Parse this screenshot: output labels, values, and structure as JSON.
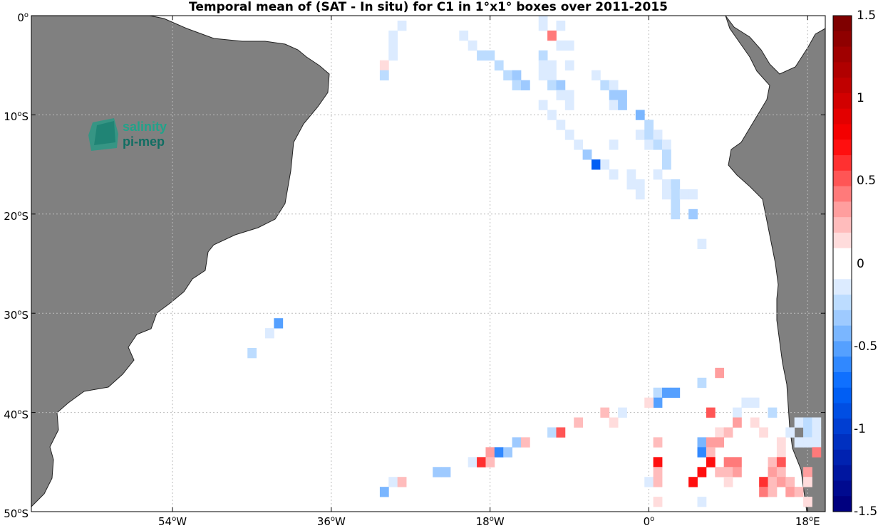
{
  "title": "Temporal mean of (SAT - In situ) for C1 in 1°x1° boxes over 2011-2015",
  "map": {
    "lon_range": [
      -70,
      20
    ],
    "lat_range": [
      -50,
      0
    ],
    "lat_labels": [
      {
        "deg": "0",
        "suffix": ""
      },
      {
        "deg": "10",
        "suffix": "S"
      },
      {
        "deg": "20",
        "suffix": "S"
      },
      {
        "deg": "30",
        "suffix": "S"
      },
      {
        "deg": "40",
        "suffix": "S"
      },
      {
        "deg": "50",
        "suffix": "S"
      }
    ],
    "lon_labels": [
      {
        "deg": "54",
        "suffix": "W"
      },
      {
        "deg": "36",
        "suffix": "W"
      },
      {
        "deg": "18",
        "suffix": "W"
      },
      {
        "deg": "0",
        "suffix": ""
      },
      {
        "deg": "18",
        "suffix": "E"
      }
    ],
    "land_color": "#808080",
    "grid": true
  },
  "logo": {
    "line1": "salinity",
    "line2": "pi-mep"
  },
  "colorbar": {
    "range": [
      -1.5,
      1.5
    ],
    "tick_labels": [
      "1.5",
      "1",
      "0.5",
      "0",
      "-0.5",
      "-1",
      "-1.5"
    ],
    "colors": [
      "#7f0000",
      "#8f0000",
      "#a00000",
      "#b00000",
      "#c00000",
      "#d20000",
      "#e30000",
      "#f40000",
      "#ff0f0f",
      "#ff3030",
      "#ff5555",
      "#ff7a7a",
      "#ff9e9e",
      "#ffbcbc",
      "#ffdcdc",
      "#ffffff",
      "#ffffff",
      "#dcebff",
      "#bcdcff",
      "#9ecaff",
      "#7ab6ff",
      "#55a0ff",
      "#3088ff",
      "#0f70ff",
      "#005ef4",
      "#004ee3",
      "#003ed2",
      "#0030c0",
      "#0022b0",
      "#0016a0",
      "#000a8f",
      "#00007f"
    ]
  },
  "chart_data": {
    "type": "heatmap",
    "cell_size_deg": 1,
    "cells": [
      [
        -28,
        -1,
        -0.1
      ],
      [
        -29,
        -2,
        -0.1
      ],
      [
        -29,
        -3,
        -0.1
      ],
      [
        -29,
        -4,
        -0.1
      ],
      [
        -30,
        -5,
        0.1
      ],
      [
        -30,
        -6,
        -0.2
      ],
      [
        -21,
        -2,
        -0.1
      ],
      [
        -20,
        -3,
        -0.1
      ],
      [
        -19,
        -4,
        -0.2
      ],
      [
        -18,
        -4,
        -0.2
      ],
      [
        -17,
        -5,
        -0.2
      ],
      [
        -16,
        -6,
        -0.2
      ],
      [
        -15,
        -6,
        -0.3
      ],
      [
        -15,
        -7,
        -0.2
      ],
      [
        -14,
        -7,
        -0.3
      ],
      [
        -12,
        0,
        -0.1
      ],
      [
        -12,
        -1,
        -0.1
      ],
      [
        -10,
        -1,
        -0.1
      ],
      [
        -11,
        -2,
        0.4
      ],
      [
        -10,
        -3,
        -0.1
      ],
      [
        -9,
        -3,
        -0.1
      ],
      [
        -12,
        -4,
        -0.2
      ],
      [
        -12,
        -5,
        -0.1
      ],
      [
        -11,
        -5,
        -0.1
      ],
      [
        -9,
        -5,
        -0.1
      ],
      [
        -12,
        -6,
        -0.1
      ],
      [
        -11,
        -6,
        -0.1
      ],
      [
        -11,
        -7,
        -0.2
      ],
      [
        -10,
        -7,
        -0.3
      ],
      [
        -10,
        -8,
        -0.1
      ],
      [
        -9,
        -8,
        -0.1
      ],
      [
        -9,
        -9,
        -0.1
      ],
      [
        -6,
        -6,
        -0.1
      ],
      [
        -5,
        -7,
        -0.2
      ],
      [
        -4,
        -7,
        -0.1
      ],
      [
        -4,
        -8,
        -0.3
      ],
      [
        -3,
        -8,
        -0.3
      ],
      [
        -4,
        -9,
        -0.1
      ],
      [
        -3,
        -9,
        -0.3
      ],
      [
        -12,
        -9,
        -0.1
      ],
      [
        -11,
        -10,
        -0.1
      ],
      [
        -10,
        -11,
        -0.1
      ],
      [
        -9,
        -12,
        -0.1
      ],
      [
        -8,
        -13,
        -0.1
      ],
      [
        -7,
        -14,
        -0.3
      ],
      [
        -6,
        -15,
        -0.8
      ],
      [
        -5,
        -15,
        -0.1
      ],
      [
        -4,
        -16,
        -0.1
      ],
      [
        -2,
        -16,
        -0.1
      ],
      [
        -2,
        -17,
        -0.1
      ],
      [
        -1,
        -17,
        -0.1
      ],
      [
        -1,
        -18,
        -0.1
      ],
      [
        -4,
        -13,
        -0.1
      ],
      [
        -1,
        -10,
        -0.4
      ],
      [
        0,
        -11,
        -0.2
      ],
      [
        -1,
        -12,
        -0.1
      ],
      [
        0,
        -12,
        -0.2
      ],
      [
        1,
        -12,
        -0.1
      ],
      [
        0,
        -13,
        -0.1
      ],
      [
        1,
        -13,
        -0.2
      ],
      [
        2,
        -13,
        -0.1
      ],
      [
        2,
        -14,
        -0.2
      ],
      [
        2,
        -15,
        -0.2
      ],
      [
        1,
        -16,
        -0.1
      ],
      [
        2,
        -17,
        -0.1
      ],
      [
        3,
        -17,
        -0.2
      ],
      [
        3,
        -18,
        -0.2
      ],
      [
        3,
        -19,
        -0.2
      ],
      [
        4,
        -18,
        -0.1
      ],
      [
        5,
        -18,
        -0.1
      ],
      [
        2,
        -18,
        -0.1
      ],
      [
        3,
        -20,
        -0.2
      ],
      [
        5,
        -20,
        -0.3
      ],
      [
        6,
        -23,
        -0.1
      ],
      [
        -42,
        -31,
        -0.5
      ],
      [
        -43,
        -32,
        -0.1
      ],
      [
        -45,
        -34,
        -0.2
      ],
      [
        8,
        -36,
        0.3
      ],
      [
        6,
        -37,
        -0.2
      ],
      [
        1,
        -38,
        -0.2
      ],
      [
        2,
        -38,
        -0.5
      ],
      [
        3,
        -38,
        -0.5
      ],
      [
        1,
        -39,
        -0.5
      ],
      [
        0,
        -39,
        0.1
      ],
      [
        11,
        -39,
        -0.1
      ],
      [
        12,
        -39,
        -0.1
      ],
      [
        -5,
        -40,
        0.2
      ],
      [
        -3,
        -40,
        -0.1
      ],
      [
        7,
        -40,
        0.5
      ],
      [
        10,
        -40,
        -0.1
      ],
      [
        14,
        -40,
        -0.2
      ],
      [
        -8,
        -41,
        0.2
      ],
      [
        -4,
        -41,
        0.1
      ],
      [
        10,
        -41,
        0.3
      ],
      [
        12,
        -41,
        0.1
      ],
      [
        17,
        -41,
        -0.1
      ],
      [
        18,
        -41,
        -0.2
      ],
      [
        19,
        -41,
        -0.1
      ],
      [
        -11,
        -42,
        -0.2
      ],
      [
        -10,
        -42,
        0.5
      ],
      [
        8,
        -42,
        0.1
      ],
      [
        9,
        -42,
        0.2
      ],
      [
        13,
        -42,
        0.1
      ],
      [
        16,
        -42,
        -0.1
      ],
      [
        18,
        -42,
        -0.2
      ],
      [
        19,
        -42,
        -0.1
      ],
      [
        -15,
        -43,
        -0.3
      ],
      [
        -14,
        -43,
        0.2
      ],
      [
        1,
        -43,
        0.2
      ],
      [
        6,
        -43,
        -0.4
      ],
      [
        7,
        -43,
        0.3
      ],
      [
        8,
        -43,
        0.3
      ],
      [
        15,
        -43,
        0.1
      ],
      [
        17,
        -43,
        -0.1
      ],
      [
        18,
        -43,
        -0.1
      ],
      [
        19,
        -43,
        -0.1
      ],
      [
        -18,
        -44,
        0.3
      ],
      [
        -17,
        -44,
        -0.6
      ],
      [
        -16,
        -44,
        -0.3
      ],
      [
        6,
        -44,
        -0.6
      ],
      [
        7,
        -44,
        0.2
      ],
      [
        15,
        -44,
        0.1
      ],
      [
        19,
        -44,
        0.4
      ],
      [
        -20,
        -45,
        -0.1
      ],
      [
        -19,
        -45,
        0.6
      ],
      [
        -18,
        -45,
        0.2
      ],
      [
        1,
        -45,
        0.7
      ],
      [
        7,
        -45,
        0.7
      ],
      [
        9,
        -45,
        0.4
      ],
      [
        10,
        -45,
        0.4
      ],
      [
        14,
        -45,
        0.2
      ],
      [
        15,
        -45,
        0.5
      ],
      [
        -24,
        -46,
        -0.3
      ],
      [
        -23,
        -46,
        -0.3
      ],
      [
        1,
        -46,
        0.2
      ],
      [
        6,
        -46,
        0.7
      ],
      [
        8,
        -46,
        0.2
      ],
      [
        9,
        -46,
        0.2
      ],
      [
        10,
        -46,
        0.3
      ],
      [
        14,
        -46,
        0.3
      ],
      [
        15,
        -46,
        0.2
      ],
      [
        18,
        -46,
        0.3
      ],
      [
        -29,
        -47,
        -0.1
      ],
      [
        -28,
        -47,
        0.2
      ],
      [
        0,
        -47,
        -0.1
      ],
      [
        1,
        -47,
        0.2
      ],
      [
        5,
        -47,
        0.7
      ],
      [
        9,
        -47,
        0.1
      ],
      [
        13,
        -47,
        0.6
      ],
      [
        14,
        -47,
        0.2
      ],
      [
        15,
        -47,
        0.3
      ],
      [
        16,
        -47,
        0.2
      ],
      [
        18,
        -47,
        0.1
      ],
      [
        -30,
        -48,
        -0.4
      ],
      [
        13,
        -48,
        0.4
      ],
      [
        14,
        -48,
        0.2
      ],
      [
        16,
        -48,
        0.3
      ],
      [
        17,
        -48,
        0.2
      ],
      [
        1,
        -49,
        0.1
      ],
      [
        6,
        -49,
        -0.1
      ],
      [
        18,
        -49,
        0.1
      ]
    ]
  }
}
